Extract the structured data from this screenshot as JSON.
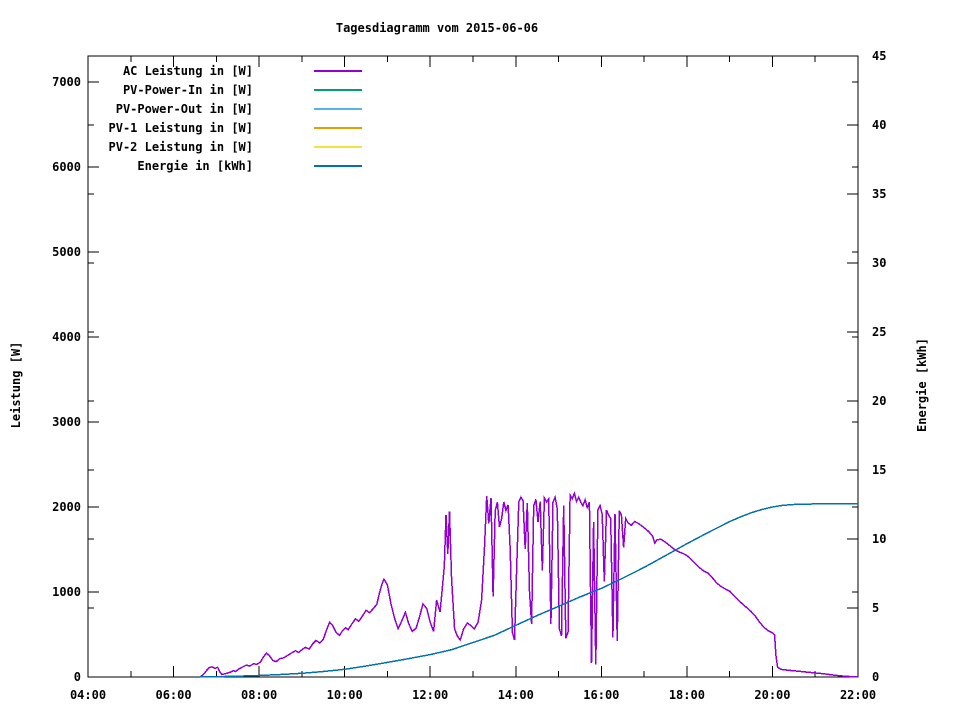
{
  "page": {
    "background": "#ffffff"
  },
  "chart_data": {
    "type": "line",
    "title": "Tagesdiagramm vom 2015-06-06",
    "xlabel": "",
    "ylabel": "Leistung [W]",
    "y2label": "Energie [kWh]",
    "x_unit": "time of day (hours)",
    "xlim": [
      4,
      22
    ],
    "ylim": [
      0,
      7306
    ],
    "y2lim": [
      0,
      45
    ],
    "grid": false,
    "legend_position": "top-left-inside",
    "x_major_ticks": [
      4,
      6,
      8,
      10,
      12,
      14,
      16,
      18,
      20,
      22
    ],
    "x_major_labels": [
      "04:00",
      "06:00",
      "08:00",
      "10:00",
      "12:00",
      "14:00",
      "16:00",
      "18:00",
      "20:00",
      "22:00"
    ],
    "x_minor_ticks": [
      5,
      7,
      9,
      11,
      13,
      15,
      17,
      19,
      21
    ],
    "y1_ticks": [
      0,
      1000,
      2000,
      3000,
      4000,
      5000,
      6000,
      7000
    ],
    "y1_tick_labels": [
      "0",
      "1000",
      "2000",
      "3000",
      "4000",
      "5000",
      "6000",
      "7000"
    ],
    "y2_ticks": [
      0,
      5,
      10,
      15,
      20,
      25,
      30,
      35,
      40,
      45
    ],
    "y2_tick_labels": [
      "0",
      "5",
      "10",
      "15",
      "20",
      "25",
      "30",
      "35",
      "40",
      "45"
    ],
    "series": [
      {
        "name": "AC Leistung in [W]",
        "color": "#9400d3",
        "axis": "y1",
        "points": [
          [
            6.62,
            0
          ],
          [
            6.7,
            30
          ],
          [
            6.77,
            75
          ],
          [
            6.83,
            110
          ],
          [
            6.9,
            120
          ],
          [
            6.97,
            100
          ],
          [
            7.03,
            115
          ],
          [
            7.08,
            60
          ],
          [
            7.13,
            30
          ],
          [
            7.22,
            40
          ],
          [
            7.32,
            55
          ],
          [
            7.4,
            75
          ],
          [
            7.45,
            65
          ],
          [
            7.53,
            95
          ],
          [
            7.62,
            120
          ],
          [
            7.7,
            140
          ],
          [
            7.78,
            130
          ],
          [
            7.87,
            155
          ],
          [
            7.95,
            150
          ],
          [
            8.03,
            175
          ],
          [
            8.1,
            235
          ],
          [
            8.17,
            280
          ],
          [
            8.23,
            255
          ],
          [
            8.32,
            195
          ],
          [
            8.4,
            180
          ],
          [
            8.48,
            215
          ],
          [
            8.57,
            225
          ],
          [
            8.67,
            255
          ],
          [
            8.75,
            280
          ],
          [
            8.85,
            310
          ],
          [
            8.92,
            290
          ],
          [
            9.0,
            320
          ],
          [
            9.08,
            350
          ],
          [
            9.17,
            330
          ],
          [
            9.25,
            390
          ],
          [
            9.33,
            430
          ],
          [
            9.42,
            400
          ],
          [
            9.5,
            445
          ],
          [
            9.58,
            560
          ],
          [
            9.65,
            645
          ],
          [
            9.72,
            605
          ],
          [
            9.8,
            525
          ],
          [
            9.88,
            490
          ],
          [
            9.95,
            545
          ],
          [
            10.02,
            580
          ],
          [
            10.08,
            555
          ],
          [
            10.17,
            625
          ],
          [
            10.25,
            685
          ],
          [
            10.33,
            655
          ],
          [
            10.42,
            720
          ],
          [
            10.5,
            785
          ],
          [
            10.58,
            755
          ],
          [
            10.67,
            805
          ],
          [
            10.75,
            855
          ],
          [
            10.82,
            1000
          ],
          [
            10.88,
            1105
          ],
          [
            10.92,
            1150
          ],
          [
            11.0,
            1085
          ],
          [
            11.08,
            865
          ],
          [
            11.17,
            685
          ],
          [
            11.25,
            570
          ],
          [
            11.33,
            655
          ],
          [
            11.42,
            760
          ],
          [
            11.5,
            625
          ],
          [
            11.58,
            535
          ],
          [
            11.67,
            575
          ],
          [
            11.75,
            705
          ],
          [
            11.83,
            860
          ],
          [
            11.92,
            805
          ],
          [
            12.0,
            645
          ],
          [
            12.08,
            535
          ],
          [
            12.15,
            905
          ],
          [
            12.23,
            765
          ],
          [
            12.33,
            1300
          ],
          [
            12.37,
            1905
          ],
          [
            12.41,
            1450
          ],
          [
            12.45,
            1950
          ],
          [
            12.5,
            1150
          ],
          [
            12.57,
            565
          ],
          [
            12.63,
            485
          ],
          [
            12.7,
            435
          ],
          [
            12.78,
            565
          ],
          [
            12.87,
            635
          ],
          [
            12.95,
            605
          ],
          [
            13.03,
            565
          ],
          [
            13.12,
            645
          ],
          [
            13.2,
            905
          ],
          [
            13.27,
            1550
          ],
          [
            13.32,
            2130
          ],
          [
            13.37,
            1805
          ],
          [
            13.42,
            2105
          ],
          [
            13.47,
            950
          ],
          [
            13.52,
            1955
          ],
          [
            13.57,
            2055
          ],
          [
            13.62,
            1765
          ],
          [
            13.67,
            1870
          ],
          [
            13.72,
            2060
          ],
          [
            13.77,
            1960
          ],
          [
            13.82,
            2025
          ],
          [
            13.87,
            1500
          ],
          [
            13.92,
            525
          ],
          [
            13.97,
            435
          ],
          [
            14.02,
            1250
          ],
          [
            14.07,
            2060
          ],
          [
            14.12,
            2115
          ],
          [
            14.17,
            2075
          ],
          [
            14.22,
            1505
          ],
          [
            14.27,
            2045
          ],
          [
            14.32,
            1005
          ],
          [
            14.37,
            625
          ],
          [
            14.42,
            2015
          ],
          [
            14.47,
            2090
          ],
          [
            14.52,
            1825
          ],
          [
            14.57,
            2065
          ],
          [
            14.62,
            1255
          ],
          [
            14.67,
            2105
          ],
          [
            14.72,
            2060
          ],
          [
            14.77,
            2095
          ],
          [
            14.82,
            625
          ],
          [
            14.87,
            2055
          ],
          [
            14.92,
            2115
          ],
          [
            14.97,
            1975
          ],
          [
            15.02,
            565
          ],
          [
            15.07,
            485
          ],
          [
            15.12,
            2015
          ],
          [
            15.17,
            455
          ],
          [
            15.22,
            525
          ],
          [
            15.27,
            2140
          ],
          [
            15.32,
            2095
          ],
          [
            15.37,
            2160
          ],
          [
            15.42,
            2065
          ],
          [
            15.47,
            2115
          ],
          [
            15.52,
            2055
          ],
          [
            15.57,
            2015
          ],
          [
            15.62,
            2085
          ],
          [
            15.67,
            1995
          ],
          [
            15.72,
            2055
          ],
          [
            15.77,
            165
          ],
          [
            15.82,
            1825
          ],
          [
            15.87,
            145
          ],
          [
            15.92,
            1965
          ],
          [
            15.97,
            2015
          ],
          [
            16.02,
            1915
          ],
          [
            16.07,
            1125
          ],
          [
            16.12,
            1965
          ],
          [
            16.17,
            1905
          ],
          [
            16.22,
            1865
          ],
          [
            16.27,
            465
          ],
          [
            16.32,
            1915
          ],
          [
            16.37,
            425
          ],
          [
            16.42,
            1955
          ],
          [
            16.47,
            1905
          ],
          [
            16.52,
            1525
          ],
          [
            16.57,
            1865
          ],
          [
            16.62,
            1815
          ],
          [
            16.7,
            1785
          ],
          [
            16.78,
            1830
          ],
          [
            16.87,
            1805
          ],
          [
            16.95,
            1775
          ],
          [
            17.03,
            1745
          ],
          [
            17.12,
            1705
          ],
          [
            17.2,
            1655
          ],
          [
            17.25,
            1575
          ],
          [
            17.3,
            1615
          ],
          [
            17.4,
            1620
          ],
          [
            17.5,
            1585
          ],
          [
            17.6,
            1545
          ],
          [
            17.7,
            1505
          ],
          [
            17.8,
            1475
          ],
          [
            17.9,
            1455
          ],
          [
            18.0,
            1430
          ],
          [
            18.1,
            1385
          ],
          [
            18.2,
            1335
          ],
          [
            18.3,
            1285
          ],
          [
            18.4,
            1245
          ],
          [
            18.5,
            1220
          ],
          [
            18.6,
            1165
          ],
          [
            18.7,
            1105
          ],
          [
            18.8,
            1065
          ],
          [
            18.9,
            1035
          ],
          [
            19.0,
            1010
          ],
          [
            19.1,
            955
          ],
          [
            19.2,
            905
          ],
          [
            19.3,
            860
          ],
          [
            19.4,
            815
          ],
          [
            19.5,
            770
          ],
          [
            19.6,
            715
          ],
          [
            19.7,
            645
          ],
          [
            19.8,
            585
          ],
          [
            19.9,
            545
          ],
          [
            20.0,
            520
          ],
          [
            20.05,
            495
          ],
          [
            20.08,
            255
          ],
          [
            20.12,
            115
          ],
          [
            20.2,
            90
          ],
          [
            20.4,
            78
          ],
          [
            20.6,
            68
          ],
          [
            20.8,
            58
          ],
          [
            21.0,
            48
          ],
          [
            21.2,
            38
          ],
          [
            21.4,
            25
          ],
          [
            21.6,
            13
          ],
          [
            21.8,
            6
          ],
          [
            22.0,
            3
          ]
        ]
      },
      {
        "name": "PV-Power-In in [W]",
        "color": "#009e73",
        "axis": "y1",
        "points": []
      },
      {
        "name": "PV-Power-Out in [W]",
        "color": "#56b4e9",
        "axis": "y1",
        "points": []
      },
      {
        "name": "PV-1 Leistung in [W]",
        "color": "#e69f00",
        "axis": "y1",
        "points": []
      },
      {
        "name": "PV-2 Leistung in [W]",
        "color": "#f0e442",
        "axis": "y1",
        "points": []
      },
      {
        "name": "Energie in [kWh]",
        "color": "#0072b2",
        "axis": "y2",
        "points": [
          [
            6.62,
            0
          ],
          [
            7.0,
            0.02
          ],
          [
            7.5,
            0.06
          ],
          [
            8.0,
            0.11
          ],
          [
            8.5,
            0.18
          ],
          [
            9.0,
            0.27
          ],
          [
            9.5,
            0.4
          ],
          [
            10.0,
            0.56
          ],
          [
            10.5,
            0.8
          ],
          [
            11.0,
            1.06
          ],
          [
            11.5,
            1.33
          ],
          [
            12.0,
            1.62
          ],
          [
            12.5,
            1.98
          ],
          [
            13.0,
            2.5
          ],
          [
            13.5,
            3.02
          ],
          [
            14.0,
            3.75
          ],
          [
            14.5,
            4.46
          ],
          [
            15.0,
            5.12
          ],
          [
            15.5,
            5.8
          ],
          [
            16.0,
            6.42
          ],
          [
            16.5,
            7.16
          ],
          [
            17.0,
            7.94
          ],
          [
            17.5,
            8.8
          ],
          [
            18.0,
            9.66
          ],
          [
            18.5,
            10.48
          ],
          [
            19.0,
            11.26
          ],
          [
            19.25,
            11.6
          ],
          [
            19.5,
            11.9
          ],
          [
            19.75,
            12.14
          ],
          [
            20.0,
            12.32
          ],
          [
            20.25,
            12.44
          ],
          [
            20.5,
            12.5
          ],
          [
            21.0,
            12.54
          ],
          [
            21.5,
            12.55
          ],
          [
            22.0,
            12.55
          ]
        ]
      }
    ]
  }
}
